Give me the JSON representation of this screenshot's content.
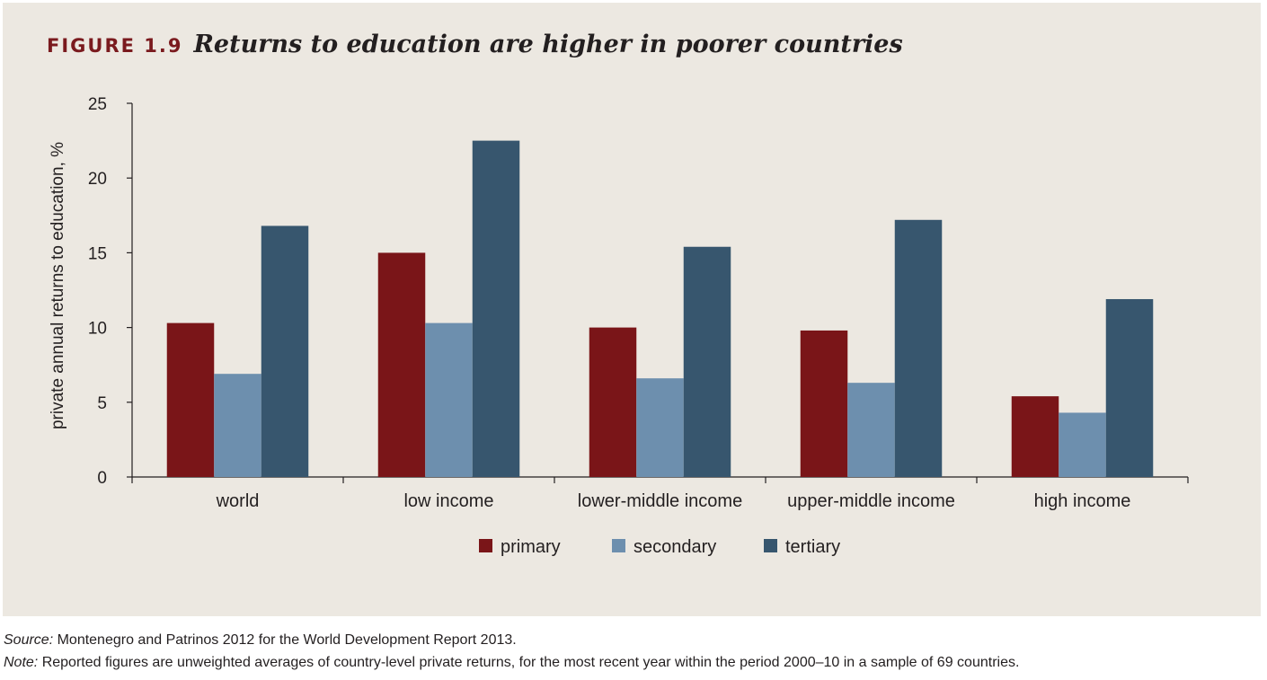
{
  "figure": {
    "label": "FIGURE 1.9",
    "title": "Returns to education are higher in poorer countries"
  },
  "chart_data": {
    "type": "bar",
    "ylabel": "private annual returns to education, %",
    "xlabel": "",
    "ylim": [
      0,
      25
    ],
    "yticks": [
      "0",
      "5",
      "10",
      "15",
      "20",
      "25"
    ],
    "categories": [
      "world",
      "low income",
      "lower-middle income",
      "upper-middle income",
      "high income"
    ],
    "series": [
      {
        "name": "primary",
        "color": "#7a1518",
        "values": [
          10.3,
          15.0,
          10.0,
          9.8,
          5.4
        ]
      },
      {
        "name": "secondary",
        "color": "#6d8fae",
        "values": [
          6.9,
          10.3,
          6.6,
          6.3,
          4.3
        ]
      },
      {
        "name": "tertiary",
        "color": "#37566e",
        "values": [
          16.8,
          22.5,
          15.4,
          17.2,
          11.9
        ]
      }
    ],
    "legend_position": "bottom-center",
    "grid": false
  },
  "notes": {
    "source_label": "Source:",
    "source_text": " Montenegro and Patrinos 2012 for the World Development Report 2013.",
    "note_label": "Note:",
    "note_text": " Reported figures are unweighted averages of country-level private returns, for the most recent year within the period 2000–10 in a sample of 69 countries."
  }
}
